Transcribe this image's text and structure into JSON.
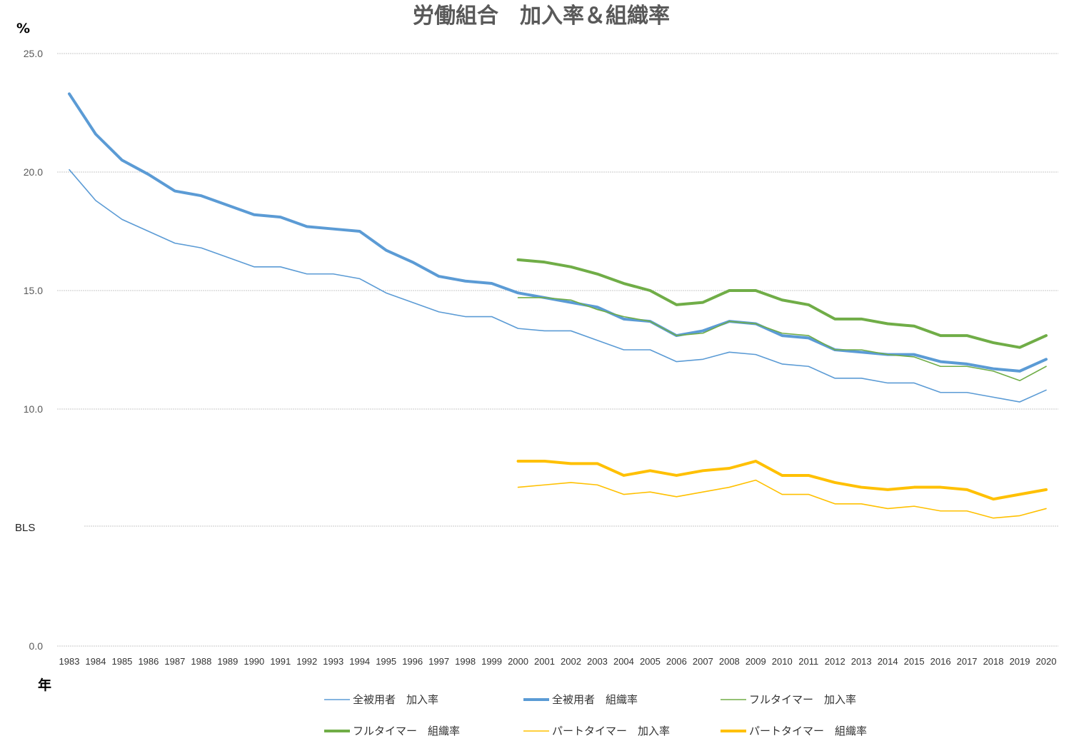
{
  "chart_data": {
    "type": "line",
    "title": "労働組合　加入率＆組織率",
    "ylabel": "%",
    "xlabel": "年",
    "note": "BLS",
    "ylim": [
      0,
      25
    ],
    "yticks": [
      "0.0",
      "10.0",
      "15.0",
      "20.0",
      "25.0"
    ],
    "grid": true,
    "legend_position": "bottom",
    "x": [
      "1983",
      "1984",
      "1985",
      "1986",
      "1987",
      "1988",
      "1989",
      "1990",
      "1991",
      "1992",
      "1993",
      "1994",
      "1995",
      "1996",
      "1997",
      "1998",
      "1999",
      "2000",
      "2001",
      "2002",
      "2003",
      "2004",
      "2005",
      "2006",
      "2007",
      "2008",
      "2009",
      "2010",
      "2011",
      "2012",
      "2013",
      "2014",
      "2015",
      "2016",
      "2017",
      "2018",
      "2019",
      "2020"
    ],
    "series": [
      {
        "name": "全被用者　加入率",
        "color": "#5B9BD5",
        "width": 1.6,
        "values": [
          20.1,
          18.8,
          18.0,
          17.5,
          17.0,
          16.8,
          16.4,
          16.0,
          16.0,
          15.7,
          15.7,
          15.5,
          14.9,
          14.5,
          14.1,
          13.9,
          13.9,
          13.4,
          13.3,
          13.3,
          12.9,
          12.5,
          12.5,
          12.0,
          12.1,
          12.4,
          12.3,
          11.9,
          11.8,
          11.3,
          11.3,
          11.1,
          11.1,
          10.7,
          10.7,
          10.5,
          10.3,
          10.8
        ]
      },
      {
        "name": "全被用者　組織率",
        "color": "#5B9BD5",
        "width": 4,
        "values": [
          23.3,
          21.6,
          20.5,
          19.9,
          19.2,
          19.0,
          18.6,
          18.2,
          18.1,
          17.7,
          17.6,
          17.5,
          16.7,
          16.2,
          15.6,
          15.4,
          15.3,
          14.9,
          14.7,
          14.5,
          14.3,
          13.8,
          13.7,
          13.1,
          13.3,
          13.7,
          13.6,
          13.1,
          13.0,
          12.5,
          12.4,
          12.3,
          12.3,
          12.0,
          11.9,
          11.7,
          11.6,
          12.1
        ]
      },
      {
        "name": "フルタイマー　加入率",
        "color": "#70AD47",
        "width": 1.6,
        "values": [
          null,
          null,
          null,
          null,
          null,
          null,
          null,
          null,
          null,
          null,
          null,
          null,
          null,
          null,
          null,
          null,
          null,
          14.7,
          14.7,
          14.6,
          14.2,
          13.9,
          13.7,
          13.1,
          13.2,
          13.7,
          13.6,
          13.2,
          13.1,
          12.5,
          12.5,
          12.3,
          12.2,
          11.8,
          11.8,
          11.6,
          11.2,
          11.8
        ]
      },
      {
        "name": "フルタイマー　組織率",
        "color": "#70AD47",
        "width": 4,
        "values": [
          null,
          null,
          null,
          null,
          null,
          null,
          null,
          null,
          null,
          null,
          null,
          null,
          null,
          null,
          null,
          null,
          null,
          16.3,
          16.2,
          16.0,
          15.7,
          15.3,
          15.0,
          14.4,
          14.5,
          15.0,
          15.0,
          14.6,
          14.4,
          13.8,
          13.8,
          13.6,
          13.5,
          13.1,
          13.1,
          12.8,
          12.6,
          13.1
        ]
      },
      {
        "name": "パートタイマー　加入率",
        "color": "#FFC000",
        "width": 1.6,
        "values": [
          null,
          null,
          null,
          null,
          null,
          null,
          null,
          null,
          null,
          null,
          null,
          null,
          null,
          null,
          null,
          null,
          null,
          6.7,
          6.8,
          6.9,
          6.8,
          6.4,
          6.5,
          6.3,
          6.5,
          6.7,
          7.0,
          6.4,
          6.4,
          6.0,
          6.0,
          5.8,
          5.9,
          5.7,
          5.7,
          5.4,
          5.5,
          5.8
        ]
      },
      {
        "name": "パートタイマー　組織率",
        "color": "#FFC000",
        "width": 4,
        "values": [
          null,
          null,
          null,
          null,
          null,
          null,
          null,
          null,
          null,
          null,
          null,
          null,
          null,
          null,
          null,
          null,
          null,
          7.8,
          7.8,
          7.7,
          7.7,
          7.2,
          7.4,
          7.2,
          7.4,
          7.5,
          7.8,
          7.2,
          7.2,
          6.9,
          6.7,
          6.6,
          6.7,
          6.7,
          6.6,
          6.2,
          6.4,
          6.6
        ]
      }
    ]
  }
}
